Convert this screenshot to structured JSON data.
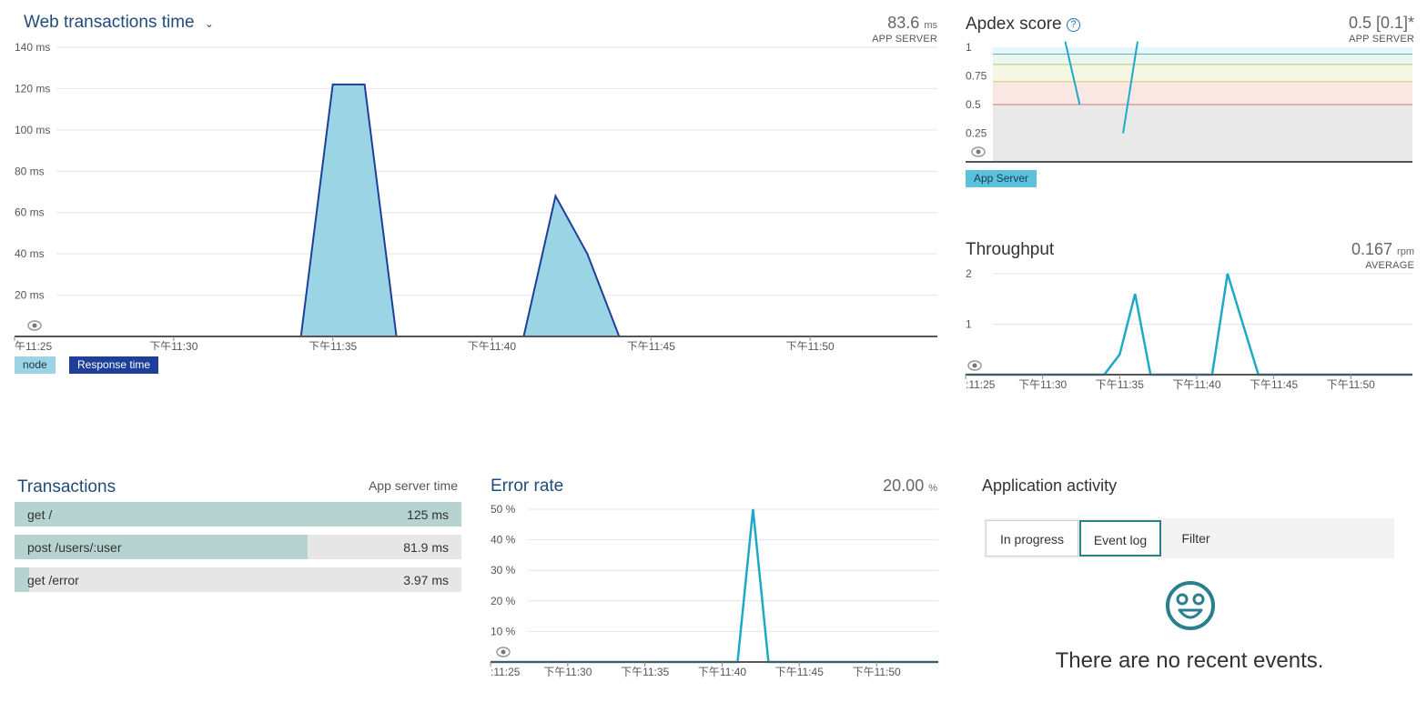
{
  "web_transactions": {
    "title": "Web transactions time",
    "metric_value": "83.6",
    "metric_unit": "ms",
    "metric_label": "APP SERVER",
    "y_ticks": [
      "140 ms",
      "120 ms",
      "100 ms",
      "80 ms",
      "60 ms",
      "40 ms",
      "20 ms"
    ],
    "x_ticks": [
      "午11:25",
      "下午11:30",
      "下午11:35",
      "下午11:40",
      "下午11:45",
      "下午11:50"
    ],
    "legend": [
      "node",
      "Response time"
    ]
  },
  "apdex": {
    "title": "Apdex score",
    "metric_value": "0.5 [0.1]*",
    "metric_label": "APP SERVER",
    "y_ticks": [
      "1",
      "0.75",
      "0.5",
      "0.25"
    ],
    "legend": "App Server"
  },
  "throughput": {
    "title": "Throughput",
    "metric_value": "0.167",
    "metric_unit": "rpm",
    "metric_label": "AVERAGE",
    "y_ticks": [
      "2",
      "1"
    ],
    "x_ticks": [
      ":11:25",
      "下午11:30",
      "下午11:35",
      "下午11:40",
      "下午11:45",
      "下午11:50"
    ]
  },
  "transactions": {
    "title": "Transactions",
    "column_label": "App server time",
    "rows": [
      {
        "name": "get /",
        "value": "125 ms",
        "fraction": 1.0
      },
      {
        "name": "post /users/:user",
        "value": "81.9 ms",
        "fraction": 0.655
      },
      {
        "name": "get /error",
        "value": "3.97 ms",
        "fraction": 0.032
      }
    ]
  },
  "error_rate": {
    "title": "Error rate",
    "metric_value": "20.00",
    "metric_unit": "%",
    "y_ticks": [
      "50 %",
      "40 %",
      "30 %",
      "20 %",
      "10 %"
    ],
    "x_ticks": [
      ":11:25",
      "下午11:30",
      "下午11:35",
      "下午11:40",
      "下午11:45",
      "下午11:50"
    ]
  },
  "activity": {
    "title": "Application activity",
    "tabs": [
      "In progress",
      "Event log",
      "Filter"
    ],
    "active_tab": "Event log",
    "empty_message": "There are no recent events.",
    "empty_icon": "smiley-icon"
  },
  "colors": {
    "area_fill": "#9bd5e5",
    "area_line": "#1e3f99",
    "line_series": "#1fa9c9",
    "title_blue": "#1f4c7a",
    "accent_teal": "#2a7f8e"
  },
  "chart_data": [
    {
      "type": "area",
      "title": "Web transactions time",
      "x": [
        "午11:25",
        "下午11:30",
        "下午11:35",
        "下午11:40",
        "下午11:45",
        "下午11:50"
      ],
      "ylim": [
        0,
        140
      ],
      "series": [
        {
          "name": "node",
          "values": [
            [
              0,
              0
            ],
            [
              9,
              0
            ],
            [
              10,
              122
            ],
            [
              11,
              122
            ],
            [
              12,
              0
            ],
            [
              16,
              0
            ],
            [
              17,
              68
            ],
            [
              18,
              40
            ],
            [
              19,
              0
            ],
            [
              29,
              0
            ]
          ]
        }
      ]
    },
    {
      "type": "line",
      "title": "Apdex score",
      "ylim": [
        0,
        1
      ],
      "series": [
        {
          "name": "App Server",
          "values": [
            [
              5,
              1.1
            ],
            [
              6,
              0.5
            ],
            [
              9,
              0.25
            ],
            [
              10,
              1.1
            ]
          ]
        }
      ]
    },
    {
      "type": "line",
      "title": "Throughput",
      "x": [
        ":11:25",
        "下午11:30",
        "下午11:35",
        "下午11:40",
        "下午11:45",
        "下午11:50"
      ],
      "ylim": [
        0,
        2
      ],
      "series": [
        {
          "values": [
            [
              0,
              0
            ],
            [
              9,
              0
            ],
            [
              10,
              0.4
            ],
            [
              11,
              1.6
            ],
            [
              12,
              0
            ],
            [
              16,
              0
            ],
            [
              17,
              2
            ],
            [
              19,
              0
            ],
            [
              29,
              0
            ]
          ]
        }
      ]
    },
    {
      "type": "line",
      "title": "Error rate",
      "x": [
        ":11:25",
        "下午11:30",
        "下午11:35",
        "下午11:40",
        "下午11:45",
        "下午11:50"
      ],
      "ylim": [
        0,
        50
      ],
      "series": [
        {
          "values": [
            [
              0,
              0
            ],
            [
              16,
              0
            ],
            [
              17,
              50
            ],
            [
              18,
              0
            ],
            [
              29,
              0
            ]
          ]
        }
      ]
    }
  ]
}
